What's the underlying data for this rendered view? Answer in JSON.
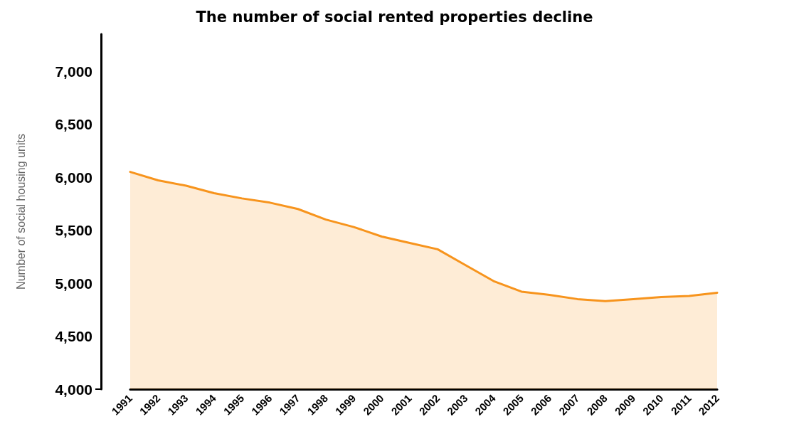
{
  "chart_data": {
    "type": "area",
    "title": "The number of social rented properties decline",
    "ylabel": "Number of social housing units",
    "categories": [
      "1991",
      "1992",
      "1993",
      "1994",
      "1995",
      "1996",
      "1997",
      "1998",
      "1999",
      "2000",
      "2001",
      "2002",
      "2003",
      "2004",
      "2005",
      "2006",
      "2007",
      "2008",
      "2009",
      "2010",
      "2011",
      "2012"
    ],
    "series": [
      {
        "color": "#f7941d",
        "values": [
          6050,
          5970,
          5920,
          5850,
          5800,
          5760,
          5700,
          5600,
          5530,
          5440,
          5380,
          5320,
          5170,
          5020,
          4920,
          4890,
          4850,
          4830,
          4850,
          4870,
          4880,
          4910
        ]
      }
    ],
    "ylim": [
      4000,
      7350
    ],
    "yticks": [
      {
        "value": 4000,
        "label": "4,000"
      },
      {
        "value": 4500,
        "label": "4,500"
      },
      {
        "value": 5000,
        "label": "5,000"
      },
      {
        "value": 5500,
        "label": "5,500"
      },
      {
        "value": 6000,
        "label": "6,000"
      },
      {
        "value": 6500,
        "label": "6,500"
      },
      {
        "value": 7000,
        "label": "7,000"
      }
    ],
    "grid": false,
    "marker": "none",
    "line_style": "solid"
  }
}
